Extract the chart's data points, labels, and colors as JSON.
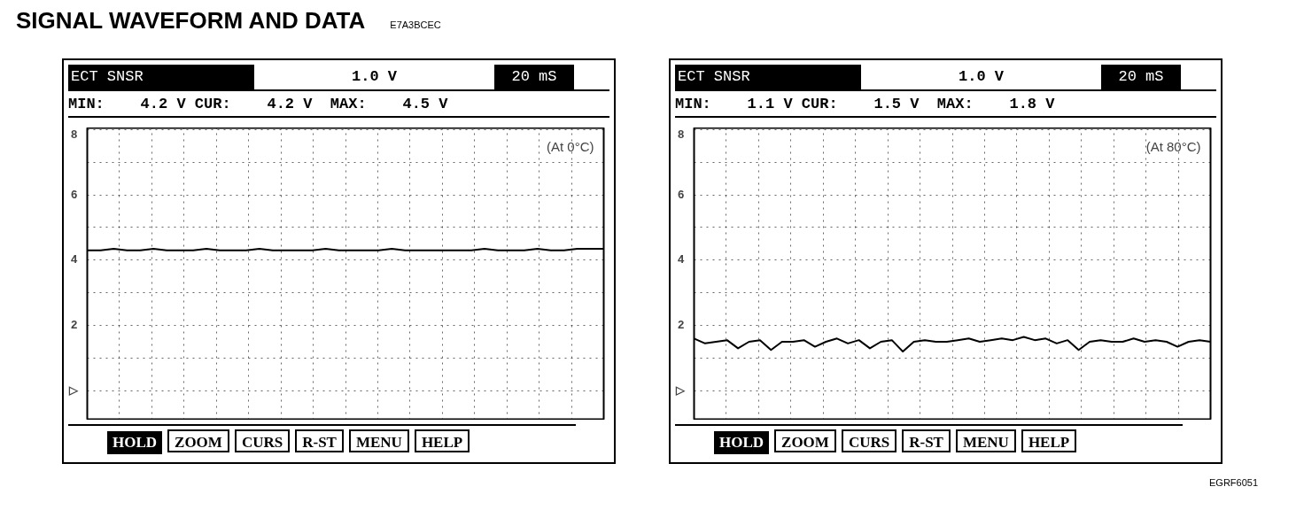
{
  "chart_data": [
    {
      "type": "other",
      "title": "SIGNAL WAVEFORM AND DATA",
      "annotations": [
        "E7A3BCEC",
        "EGRF6051"
      ]
    },
    {
      "type": "line",
      "title": "ECT SNSR",
      "annotations": [
        "1.0 V",
        "20 mS",
        "MIN:    4.2 V CUR:    4.2 V  MAX:    4.5 V",
        "(At 0°C)",
        "HOLD",
        "ZOOM",
        "CURS",
        "R-ST",
        "MENU",
        "HELP"
      ],
      "categories": [
        null,
        null,
        null,
        null,
        null,
        null,
        null,
        null,
        null,
        null,
        null,
        null,
        null,
        null,
        null,
        null,
        null,
        null,
        null,
        null,
        null,
        null,
        null,
        null,
        null,
        null,
        null,
        null,
        null,
        null,
        null,
        null,
        null,
        null,
        null,
        null,
        null,
        null,
        null,
        null
      ],
      "series": [
        {
          "color": "#000000",
          "values": [
            4.3,
            4.3,
            4.35,
            4.3,
            4.3,
            4.35,
            4.3,
            4.3,
            4.3,
            4.35,
            4.3,
            4.3,
            4.3,
            4.35,
            4.3,
            4.3,
            4.3,
            4.3,
            4.35,
            4.3,
            4.3,
            4.3,
            4.3,
            4.35,
            4.3,
            4.3,
            4.3,
            4.3,
            4.3,
            4.3,
            4.35,
            4.3,
            4.3,
            4.3,
            4.35,
            4.3,
            4.3,
            4.35,
            4.35,
            4.35
          ]
        }
      ],
      "ylim": [
        -0.9,
        8.05
      ],
      "yticks": [
        {
          "value": 0,
          "label": "▷"
        },
        {
          "value": 1,
          "label": null
        },
        2,
        {
          "value": 3,
          "label": null
        },
        4,
        {
          "value": 5,
          "label": null
        },
        6,
        {
          "value": 7,
          "label": null
        },
        8
      ],
      "tick_labels": "y",
      "grid": true,
      "marker": "none",
      "line_style": "solid"
    },
    {
      "type": "line",
      "title": "ECT SNSR",
      "annotations": [
        "1.0 V",
        "20 mS",
        "MIN:    1.1 V CUR:    1.5 V  MAX:    1.8 V",
        "(At 80°C)",
        "HOLD",
        "ZOOM",
        "CURS",
        "R-ST",
        "MENU",
        "HELP"
      ],
      "categories": [
        null,
        null,
        null,
        null,
        null,
        null,
        null,
        null,
        null,
        null,
        null,
        null,
        null,
        null,
        null,
        null,
        null,
        null,
        null,
        null,
        null,
        null,
        null,
        null,
        null,
        null,
        null,
        null,
        null,
        null,
        null,
        null,
        null,
        null,
        null,
        null,
        null,
        null,
        null,
        null,
        null,
        null,
        null,
        null,
        null,
        null,
        null,
        null
      ],
      "series": [
        {
          "color": "#000000",
          "values": [
            1.6,
            1.45,
            1.5,
            1.55,
            1.3,
            1.5,
            1.55,
            1.25,
            1.5,
            1.5,
            1.55,
            1.35,
            1.5,
            1.6,
            1.45,
            1.55,
            1.3,
            1.5,
            1.55,
            1.2,
            1.5,
            1.55,
            1.5,
            1.5,
            1.55,
            1.6,
            1.5,
            1.55,
            1.6,
            1.55,
            1.65,
            1.55,
            1.6,
            1.45,
            1.55,
            1.25,
            1.5,
            1.55,
            1.5,
            1.5,
            1.6,
            1.5,
            1.55,
            1.5,
            1.35,
            1.5,
            1.55,
            1.5
          ]
        }
      ],
      "ylim": [
        -0.9,
        8.05
      ],
      "yticks": [
        {
          "value": 0,
          "label": "▷"
        },
        {
          "value": 1,
          "label": null
        },
        2,
        {
          "value": 3,
          "label": null
        },
        4,
        {
          "value": 5,
          "label": null
        },
        6,
        {
          "value": 7,
          "label": null
        },
        8
      ],
      "tick_labels": "y",
      "grid": true,
      "marker": "none",
      "line_style": "solid"
    }
  ]
}
